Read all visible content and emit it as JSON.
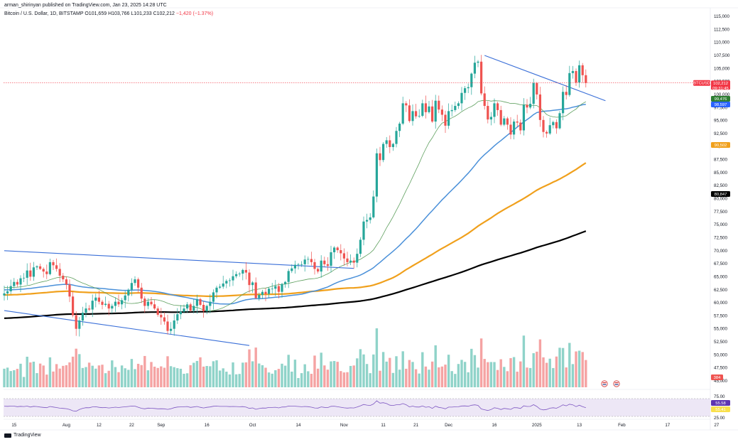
{
  "header": {
    "published_by": "arman_shirinyan published on TradingView.com, Jan 23, 2025 14:28 UTC",
    "symbol": "Bitcoin / U.S. Dollar, 1D, BITSTAMP",
    "open_label": "O",
    "open": "101,659",
    "high_label": "H",
    "high": "103,766",
    "low_label": "L",
    "low": "101,233",
    "close_label": "C",
    "close": "102,212",
    "change": "−1,420 (−1.37%)"
  },
  "footer": {
    "brand": "TradingView"
  },
  "colors": {
    "up": "#26a69a",
    "down": "#ef5350",
    "volume_up": "#8fd3c9",
    "volume_down": "#f5a3a3",
    "ma_short": "#5fa05f",
    "ma_mid": "#4a90d9",
    "ma_orange": "#f0a01c",
    "ma_black": "#000000",
    "trendline": "#3a6fd8",
    "rsi_line": "#7e57c2",
    "rsi_band": "#ede7f6"
  },
  "chart_data": {
    "type": "candlestick",
    "title": "Bitcoin / U.S. Dollar, 1D, BITSTAMP",
    "y_ticks": [
      "115,000",
      "112,500",
      "110,000",
      "107,500",
      "105,000",
      "102,500",
      "100,000",
      "97,500",
      "95,000",
      "92,500",
      "90,000",
      "87,500",
      "85,000",
      "82,500",
      "80,000",
      "77,500",
      "75,000",
      "72,500",
      "70,000",
      "67,500",
      "65,000",
      "62,500",
      "60,000",
      "57,500",
      "55,000",
      "52,500",
      "50,000",
      "47,500",
      "45,000"
    ],
    "x_ticks": [
      "15",
      "Aug",
      "12",
      "22",
      "Sep",
      "16",
      "Oct",
      "14",
      "Nov",
      "11",
      "21",
      "Dec",
      "16",
      "2025",
      "13",
      "Feb",
      "17",
      "27"
    ],
    "ylim": [
      45000,
      116000
    ],
    "price_labels": [
      {
        "name": "BTCUSD",
        "text": "BTCUSD",
        "value": "102,212",
        "sub": "09:31:45",
        "color": "#f23645"
      },
      {
        "name": "ma-short",
        "value": "99,476",
        "color": "#2e7d32"
      },
      {
        "name": "ma-mid",
        "value": "98,597",
        "color": "#2962ff"
      },
      {
        "name": "ma-orange",
        "value": "90,502",
        "color": "#f0a01c"
      },
      {
        "name": "ma-black",
        "value": "80,847",
        "color": "#000000"
      }
    ],
    "volume_label": "384",
    "rsi": {
      "ticks": [
        "75.00",
        "25.00"
      ],
      "value_1": "55.58",
      "value_2": "55.41"
    },
    "closes": [
      61800,
      62200,
      63200,
      64000,
      63500,
      64700,
      64800,
      66200,
      65000,
      66800,
      67000,
      66500,
      66000,
      65500,
      67800,
      67200,
      66500,
      65200,
      64500,
      63500,
      61200,
      57600,
      55000,
      56600,
      58100,
      58900,
      58700,
      60400,
      61000,
      60200,
      59600,
      59800,
      58900,
      59400,
      60200,
      59700,
      60500,
      61400,
      62500,
      63800,
      64500,
      62900,
      60800,
      59400,
      60200,
      59700,
      58900,
      57700,
      57200,
      56400,
      54600,
      55000,
      56600,
      57800,
      58300,
      58900,
      59700,
      58500,
      59400,
      60700,
      59600,
      58400,
      59400,
      60200,
      62000,
      62900,
      63100,
      63700,
      64200,
      64300,
      65100,
      65500,
      65600,
      66300,
      65800,
      63400,
      63900,
      60900,
      61500,
      62100,
      61700,
      62700,
      62700,
      63200,
      62100,
      63600,
      64000,
      66100,
      66600,
      67300,
      67400,
      67400,
      68300,
      68400,
      67800,
      66500,
      66000,
      68100,
      67400,
      67100,
      69700,
      70600,
      70100,
      69500,
      68500,
      67800,
      68100,
      67700,
      69400,
      72100,
      75600,
      75900,
      76400,
      80400,
      88700,
      87400,
      90500,
      91200,
      89900,
      90500,
      93000,
      94400,
      98300,
      97900,
      94900,
      96800,
      95800,
      95900,
      98300,
      96600,
      97700,
      94800,
      98800,
      97100,
      96100,
      94000,
      96800,
      97000,
      97800,
      98300,
      100300,
      101200,
      101400,
      104000,
      106100,
      106300,
      100200,
      97800,
      95200,
      95700,
      98300,
      97000,
      94200,
      95400,
      94200,
      92300,
      94800,
      94600,
      93100,
      98000,
      97500,
      98200,
      102200,
      100000,
      95100,
      92800,
      92500,
      94100,
      94700,
      93500,
      96400,
      100500,
      99900,
      104100,
      104500,
      102300,
      105600,
      103700,
      102212
    ]
  }
}
